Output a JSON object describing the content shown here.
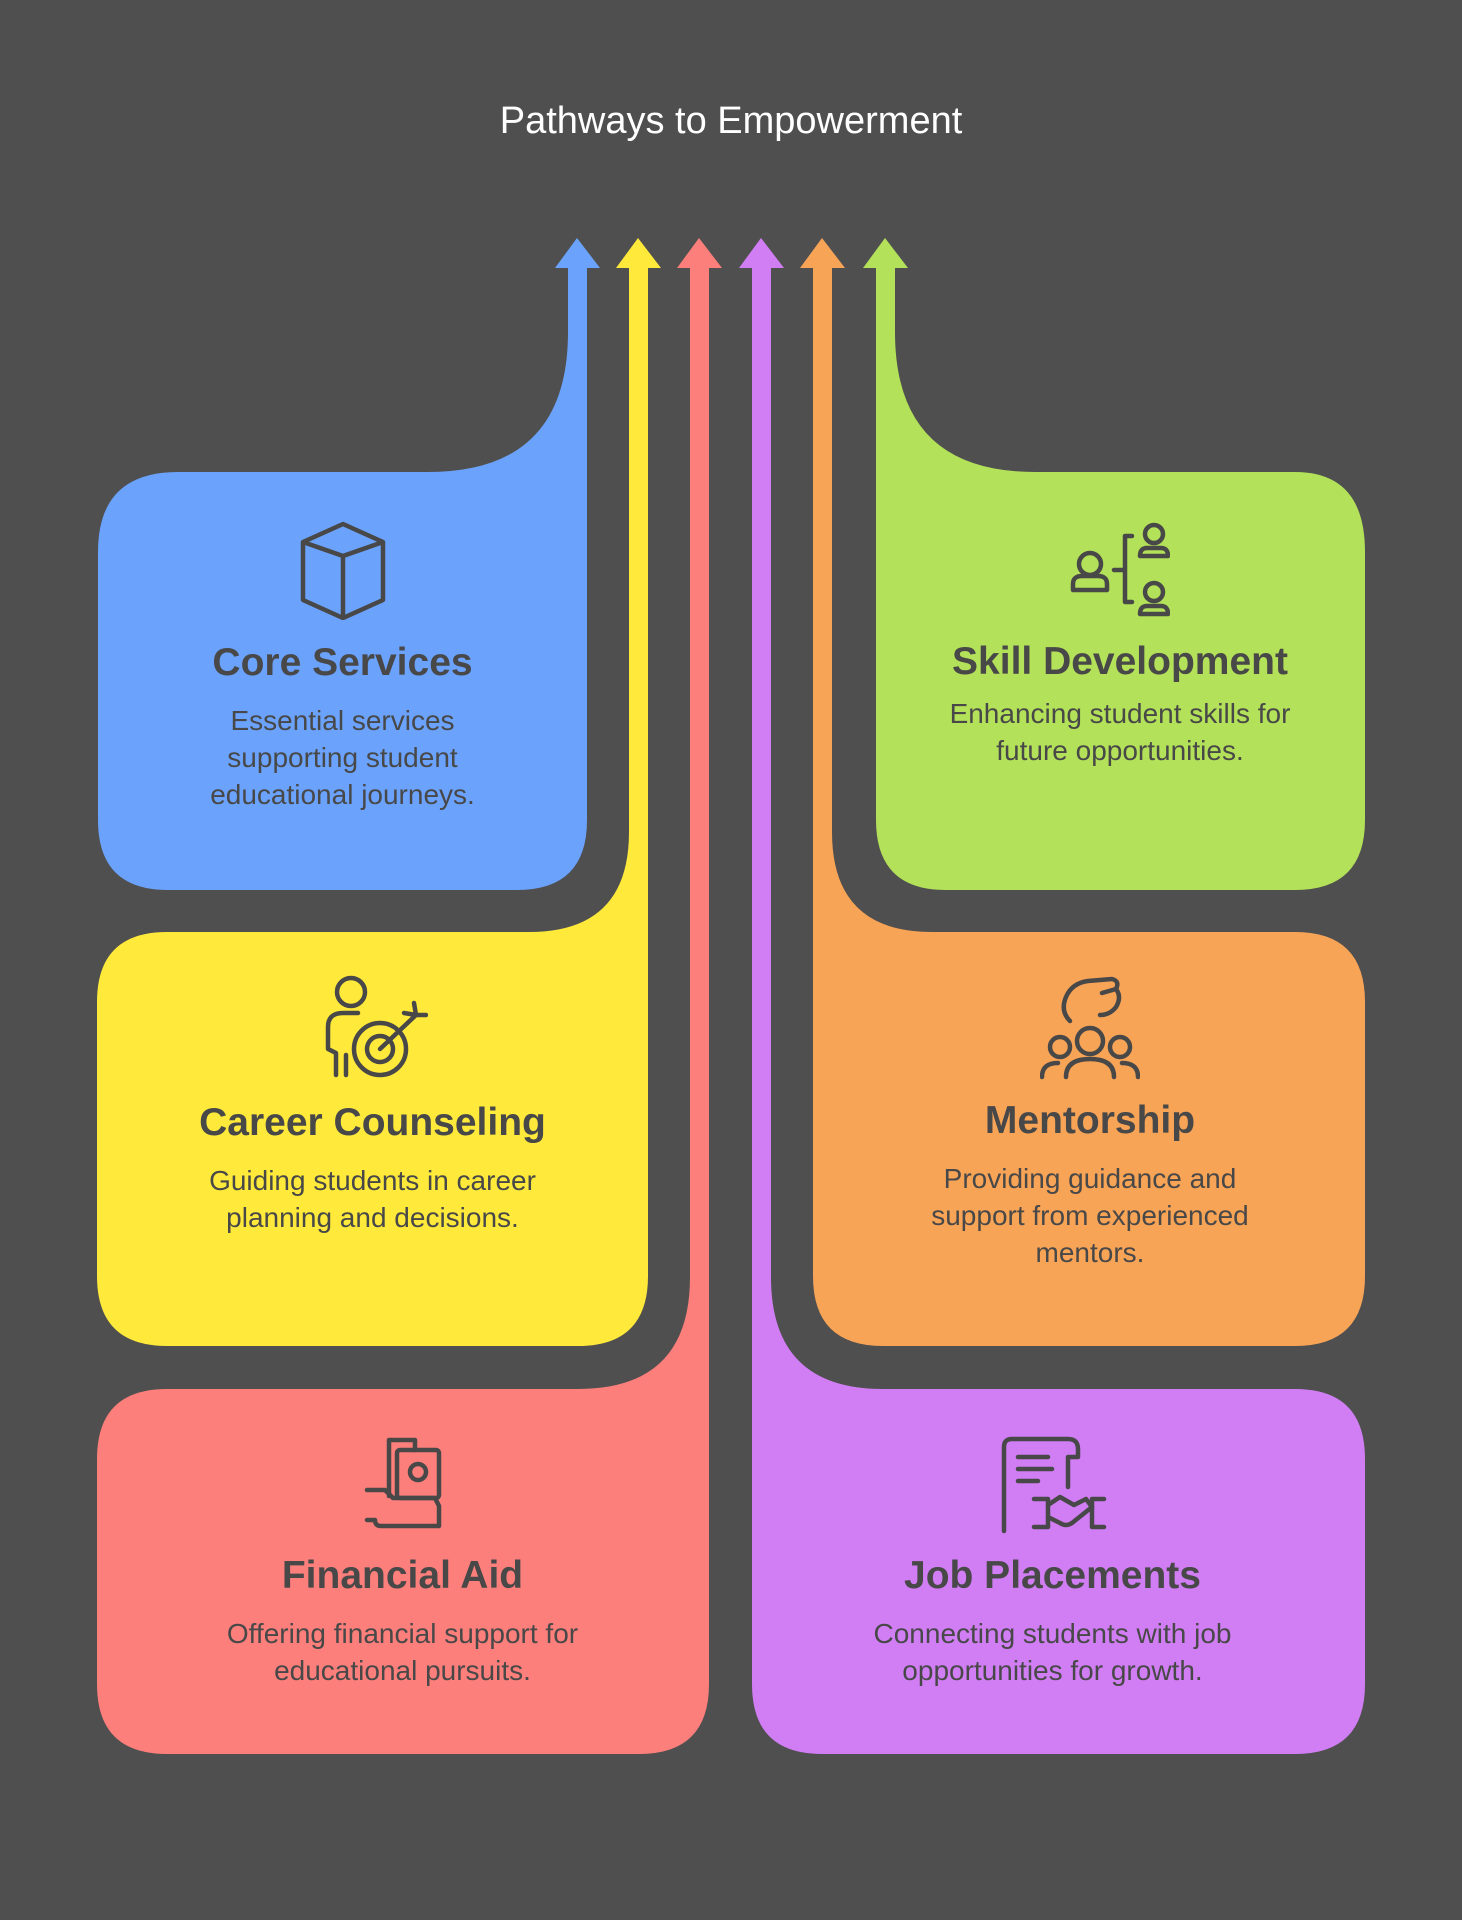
{
  "title": "Pathways to Empowerment",
  "colors": {
    "background": "#4f4f4f",
    "core_services": "#6ba3fc",
    "career_counseling": "#ffea3b",
    "financial_aid": "#fd7f7b",
    "job_placements": "#d17ef5",
    "mentorship": "#f8a457",
    "skill_development": "#b3e159",
    "text": "#484848"
  },
  "cards": {
    "core_services": {
      "icon": "cube-icon",
      "heading": "Core Services",
      "description": "Essential services supporting student educational journeys."
    },
    "career_counseling": {
      "icon": "person-target-icon",
      "heading": "Career Counseling",
      "description": "Guiding students in career planning and decisions."
    },
    "financial_aid": {
      "icon": "hand-money-icon",
      "heading": "Financial Aid",
      "description": "Offering financial support for educational pursuits."
    },
    "skill_development": {
      "icon": "mentor-tree-icon",
      "heading": "Skill Development",
      "description": "Enhancing student skills for future opportunities."
    },
    "mentorship": {
      "icon": "hand-group-icon",
      "heading": "Mentorship",
      "description": "Providing guidance and support from experienced mentors."
    },
    "job_placements": {
      "icon": "contract-handshake-icon",
      "heading": "Job Placements",
      "description": "Connecting students with job opportunities for growth."
    }
  }
}
